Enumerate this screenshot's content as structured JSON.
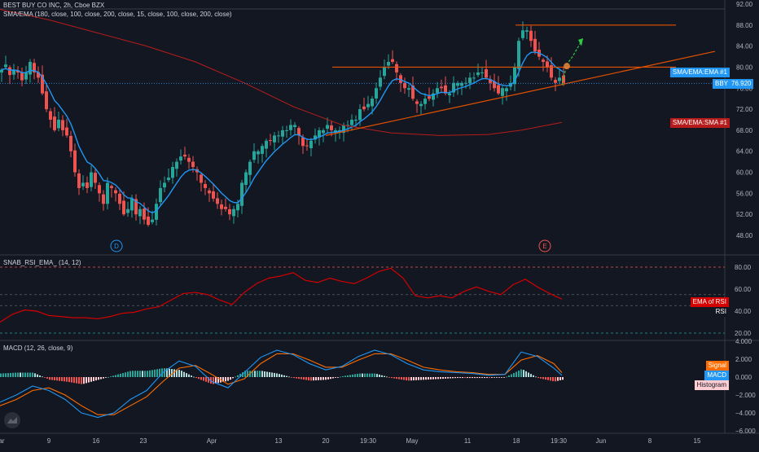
{
  "header": {
    "title": "BEST BUY CO INC, 2h, Cboe BZX",
    "indicator": "SMA/EMA (180, close, 100, close, 200, close, 15, close, 100, close, 200, close)"
  },
  "price_pane": {
    "last_price_ticker": "BBY",
    "last_price": "76.920",
    "labels": {
      "ema": "SMA/EMA:EMA #1",
      "sma": "SMA/EMA:SMA #1"
    },
    "events": [
      "D",
      "E"
    ],
    "y_ticks": [
      "92.00",
      "88.00",
      "84.00",
      "80.00",
      "76.00",
      "72.00",
      "68.00",
      "64.00",
      "60.00",
      "56.00",
      "52.00",
      "48.00"
    ]
  },
  "rsi_pane": {
    "title": "SNAB_RSI_EMA_ (14, 12)",
    "labels": {
      "ema_of_rsi": "EMA of RSI",
      "rsi": "RSI"
    },
    "y_ticks": [
      "80.00",
      "60.00",
      "40.00",
      "20.00"
    ]
  },
  "macd_pane": {
    "title": "MACD (12, 26, close, 9)",
    "labels": {
      "signal": "Signal",
      "macd": "MACD",
      "histogram": "Histogram"
    },
    "y_ticks": [
      "4.000",
      "2.000",
      "0.000",
      "−2.000",
      "−4.000",
      "−6.000"
    ]
  },
  "x_axis": {
    "ticks": [
      "ar",
      "9",
      "16",
      "23",
      "Apr",
      "13",
      "20",
      "19:30",
      "May",
      "11",
      "18",
      "19:30",
      "Jun",
      "8",
      "15"
    ]
  },
  "colors": {
    "background": "#131722",
    "up": "#26a69a",
    "down": "#ef5350",
    "ema": "#2196f3",
    "sma": "#b71c1c",
    "trend": "#e65100",
    "projection": "#2ecc40",
    "rsi_ema": "#d50000",
    "macd_line": "#2196f3",
    "signal_line": "#ff6d00"
  },
  "chart_data": [
    {
      "type": "candlestick",
      "title": "BEST BUY CO INC, 2h, Cboe BZX",
      "ylim": [
        46,
        93
      ],
      "close_series": [
        [
          0,
          79.5
        ],
        [
          5,
          80.5
        ],
        [
          10,
          78.5
        ],
        [
          15,
          79.5
        ],
        [
          20,
          79
        ],
        [
          25,
          77.5
        ],
        [
          30,
          79
        ],
        [
          35,
          81
        ],
        [
          40,
          79
        ],
        [
          45,
          78
        ],
        [
          50,
          75
        ],
        [
          55,
          72
        ],
        [
          60,
          70
        ],
        [
          65,
          68
        ],
        [
          70,
          70
        ],
        [
          75,
          68
        ],
        [
          80,
          67
        ],
        [
          85,
          64
        ],
        [
          90,
          60
        ],
        [
          95,
          57
        ],
        [
          100,
          58
        ],
        [
          105,
          57
        ],
        [
          110,
          60
        ],
        [
          115,
          58
        ],
        [
          120,
          56
        ],
        [
          125,
          54
        ],
        [
          130,
          58
        ],
        [
          135,
          57
        ],
        [
          140,
          56
        ],
        [
          145,
          54
        ],
        [
          150,
          52
        ],
        [
          155,
          53
        ],
        [
          160,
          55
        ],
        [
          165,
          52
        ],
        [
          170,
          53
        ],
        [
          175,
          51
        ],
        [
          180,
          50
        ],
        [
          185,
          51
        ],
        [
          190,
          54
        ],
        [
          195,
          57
        ],
        [
          200,
          58
        ],
        [
          205,
          59
        ],
        [
          210,
          61
        ],
        [
          215,
          62
        ],
        [
          220,
          63
        ],
        [
          225,
          63
        ],
        [
          230,
          62
        ],
        [
          235,
          61
        ],
        [
          240,
          60
        ],
        [
          245,
          58
        ],
        [
          250,
          57
        ],
        [
          255,
          56
        ],
        [
          260,
          55
        ],
        [
          265,
          54
        ],
        [
          270,
          53
        ],
        [
          275,
          53
        ],
        [
          280,
          52
        ],
        [
          285,
          53
        ],
        [
          290,
          54
        ],
        [
          295,
          58
        ],
        [
          300,
          60
        ],
        [
          305,
          62
        ],
        [
          310,
          64
        ],
        [
          315,
          64
        ],
        [
          320,
          65
        ],
        [
          325,
          66
        ],
        [
          330,
          66
        ],
        [
          335,
          67
        ],
        [
          340,
          67
        ],
        [
          345,
          68
        ],
        [
          350,
          68
        ],
        [
          355,
          69
        ],
        [
          360,
          69
        ],
        [
          365,
          67
        ],
        [
          370,
          65
        ],
        [
          375,
          65
        ],
        [
          380,
          66
        ],
        [
          385,
          67
        ],
        [
          390,
          68
        ],
        [
          395,
          68
        ],
        [
          400,
          69
        ],
        [
          405,
          68
        ],
        [
          410,
          68
        ],
        [
          415,
          68
        ],
        [
          420,
          69
        ],
        [
          425,
          69
        ],
        [
          430,
          70
        ],
        [
          435,
          70
        ],
        [
          440,
          72
        ],
        [
          445,
          72
        ],
        [
          450,
          73
        ],
        [
          455,
          74
        ],
        [
          460,
          76
        ],
        [
          465,
          78
        ],
        [
          470,
          80
        ],
        [
          475,
          81
        ],
        [
          480,
          81
        ],
        [
          485,
          79
        ],
        [
          490,
          77
        ],
        [
          495,
          76
        ],
        [
          500,
          76
        ],
        [
          505,
          74
        ],
        [
          510,
          73
        ],
        [
          515,
          73
        ],
        [
          520,
          74
        ],
        [
          525,
          74
        ],
        [
          530,
          75
        ],
        [
          535,
          76
        ],
        [
          540,
          76
        ],
        [
          545,
          75
        ],
        [
          550,
          75
        ],
        [
          555,
          77
        ],
        [
          560,
          77
        ],
        [
          565,
          77
        ],
        [
          570,
          77
        ],
        [
          575,
          78
        ],
        [
          580,
          78
        ],
        [
          585,
          79
        ],
        [
          590,
          79
        ],
        [
          595,
          78
        ],
        [
          600,
          77
        ],
        [
          605,
          76
        ],
        [
          610,
          75
        ],
        [
          615,
          76
        ],
        [
          620,
          76
        ],
        [
          625,
          77
        ],
        [
          630,
          80
        ],
        [
          635,
          85
        ],
        [
          640,
          87
        ],
        [
          645,
          87
        ],
        [
          650,
          85
        ],
        [
          655,
          83
        ],
        [
          660,
          82
        ],
        [
          665,
          81
        ],
        [
          670,
          80
        ],
        [
          675,
          78
        ],
        [
          680,
          77
        ],
        [
          685,
          78
        ],
        [
          690,
          77
        ]
      ]
    },
    {
      "type": "line",
      "title": "SNAB_RSI_EMA_ (14, 12)",
      "ylim": [
        15,
        85
      ],
      "series": [
        {
          "name": "EMA of RSI",
          "x": [
            0,
            15,
            30,
            45,
            60,
            75,
            90,
            105,
            120,
            135,
            150,
            165,
            180,
            195,
            210,
            225,
            240,
            255,
            270,
            285,
            300,
            315,
            330,
            345,
            360,
            375,
            390,
            405,
            420,
            435,
            450,
            465,
            480,
            495,
            510,
            525,
            540,
            555,
            570,
            585,
            600,
            615,
            630,
            645,
            660,
            675,
            690
          ],
          "values": [
            30,
            37,
            41,
            40,
            36,
            35,
            34,
            34,
            33,
            35,
            38,
            39,
            42,
            44,
            50,
            56,
            57,
            55,
            50,
            46,
            57,
            65,
            70,
            72,
            75,
            68,
            66,
            70,
            67,
            65,
            70,
            76,
            79,
            70,
            54,
            52,
            54,
            52,
            58,
            62,
            58,
            55,
            64,
            69,
            62,
            56,
            51
          ]
        }
      ]
    },
    {
      "type": "line",
      "title": "MACD (12, 26, close, 9)",
      "ylim": [
        -6.5,
        4.5
      ],
      "series": [
        {
          "name": "MACD",
          "x": [
            0,
            20,
            40,
            60,
            80,
            100,
            120,
            140,
            160,
            180,
            200,
            220,
            240,
            260,
            280,
            300,
            320,
            340,
            360,
            380,
            400,
            420,
            440,
            460,
            480,
            500,
            520,
            540,
            560,
            580,
            600,
            620,
            640,
            660,
            680,
            690
          ],
          "values": [
            -2.8,
            -2,
            -1,
            -1.5,
            -2.5,
            -4,
            -4.5,
            -4,
            -2.5,
            -1.5,
            0.5,
            1.8,
            1.2,
            -0.5,
            -1.2,
            0.5,
            2.2,
            3.0,
            2.5,
            1.5,
            0.8,
            1.2,
            2.3,
            3.0,
            2.5,
            1.5,
            0.8,
            0.6,
            0.5,
            0.4,
            0.2,
            0.3,
            2.8,
            2.3,
            1.0,
            0.2
          ]
        },
        {
          "name": "Signal",
          "x": [
            0,
            20,
            40,
            60,
            80,
            100,
            120,
            140,
            160,
            180,
            200,
            220,
            240,
            260,
            280,
            300,
            320,
            340,
            360,
            380,
            400,
            420,
            440,
            460,
            480,
            500,
            520,
            540,
            560,
            580,
            600,
            620,
            640,
            660,
            680,
            690
          ],
          "values": [
            -3.2,
            -2.5,
            -1.5,
            -1.2,
            -2,
            -3.2,
            -4.2,
            -4.2,
            -3.2,
            -2.2,
            -0.5,
            1,
            1.3,
            0.3,
            -0.8,
            -0.2,
            1.5,
            2.6,
            2.6,
            1.9,
            1.1,
            1.1,
            1.9,
            2.6,
            2.6,
            1.9,
            1.1,
            0.8,
            0.6,
            0.5,
            0.3,
            0.3,
            1.9,
            2.4,
            1.5,
            0.5
          ]
        }
      ]
    }
  ]
}
